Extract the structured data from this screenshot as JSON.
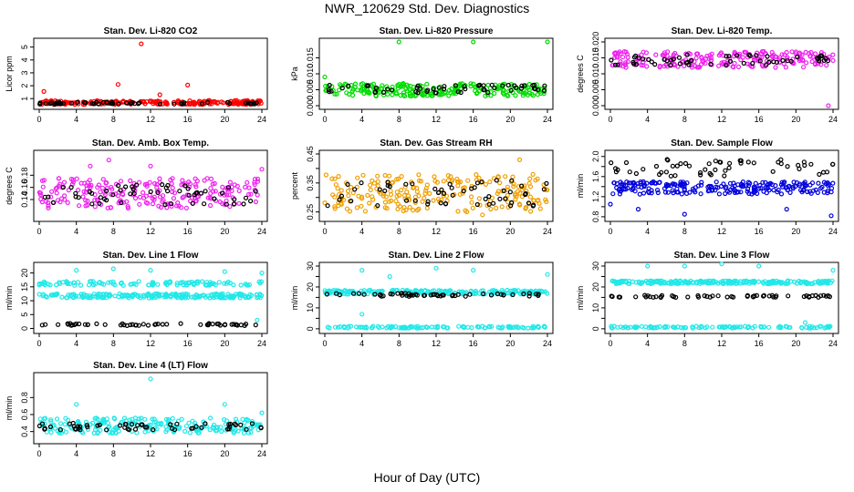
{
  "title": "NWR_120629  Std. Dev. Diagnostics",
  "x_caption": "Hour of Day (UTC)",
  "chart_data": [
    {
      "type": "scatter",
      "title": "Stan. Dev. Li-820 CO2",
      "ylabel": "Licor ppm",
      "xlim": [
        0,
        24
      ],
      "ylim": [
        0.45,
        5.4
      ],
      "x_ticks": [
        0,
        4,
        8,
        12,
        16,
        20,
        24
      ],
      "y_ticks": [
        1,
        2,
        3,
        4,
        5
      ],
      "y_tick_labels": [
        "1",
        "2",
        "3",
        "4",
        "5"
      ],
      "series": [
        {
          "color": "#ff0000",
          "band": [
            0.55,
            0.85
          ],
          "outliers": [
            [
              0.5,
              1.55
            ],
            [
              8.5,
              2.1
            ],
            [
              11,
              5.25
            ],
            [
              16,
              2.05
            ],
            [
              13,
              1.3
            ]
          ]
        },
        {
          "color": "#000000",
          "band": [
            0.55,
            0.72
          ],
          "outliers": []
        }
      ]
    },
    {
      "type": "scatter",
      "title": "Stan. Dev. Li-820 Pressure",
      "ylabel": "kPa",
      "xlim": [
        0,
        24
      ],
      "ylim": [
        0,
        0.02
      ],
      "x_ticks": [
        0,
        4,
        8,
        12,
        16,
        20,
        24
      ],
      "y_ticks": [
        0,
        0.005,
        0.01,
        0.015
      ],
      "y_tick_labels": [
        "0.000",
        "0.005",
        "0.010",
        "0.015"
      ],
      "series": [
        {
          "color": "#00dd00",
          "band": [
            0.003,
            0.007
          ],
          "outliers": [
            [
              8,
              0.02
            ],
            [
              16,
              0.02
            ],
            [
              24,
              0.02
            ],
            [
              0,
              0.009
            ]
          ]
        },
        {
          "color": "#000000",
          "band": [
            0.004,
            0.0065
          ],
          "outliers": []
        }
      ]
    },
    {
      "type": "scatter",
      "title": "Stan. Dev. Li-820 Temp.",
      "ylabel": "degrees C",
      "xlim": [
        0,
        24
      ],
      "ylim": [
        0,
        0.02
      ],
      "x_ticks": [
        0,
        4,
        8,
        12,
        16,
        20,
        24
      ],
      "y_ticks": [
        0,
        0.005,
        0.01,
        0.015,
        0.02
      ],
      "y_tick_labels": [
        "0.000",
        "0.005",
        "0.010",
        "0.015",
        "0.020"
      ],
      "series": [
        {
          "color": "#ee22ee",
          "band": [
            0.012,
            0.017
          ],
          "outliers": [
            [
              23.5,
              0.0
            ]
          ]
        },
        {
          "color": "#000000",
          "band": [
            0.0125,
            0.016
          ],
          "outliers": []
        }
      ]
    },
    {
      "type": "scatter",
      "title": "Stan. Dev. Amb. Box Temp.",
      "ylabel": "degrees C",
      "xlim": [
        0,
        24
      ],
      "ylim": [
        0.11,
        0.215
      ],
      "x_ticks": [
        0,
        4,
        8,
        12,
        16,
        20,
        24
      ],
      "y_ticks": [
        0.14,
        0.16,
        0.18
      ],
      "y_tick_labels": [
        "0.14",
        "0.16",
        "0.18"
      ],
      "series": [
        {
          "color": "#ee22ee",
          "band": [
            0.125,
            0.175
          ],
          "outliers": [
            [
              5.5,
              0.195
            ],
            [
              7.5,
              0.205
            ],
            [
              12,
              0.195
            ],
            [
              24,
              0.19
            ]
          ]
        },
        {
          "color": "#000000",
          "band": [
            0.13,
            0.165
          ],
          "outliers": []
        }
      ]
    },
    {
      "type": "scatter",
      "title": "Stan. Dev. Gas Stream RH",
      "ylabel": "percent",
      "xlim": [
        0,
        24
      ],
      "ylim": [
        0.23,
        0.45
      ],
      "x_ticks": [
        0,
        4,
        8,
        12,
        16,
        20,
        24
      ],
      "y_ticks": [
        0.25,
        0.3,
        0.35,
        0.4,
        0.45
      ],
      "y_tick_labels": [
        "0.25",
        "",
        "0.35",
        "",
        "0.45"
      ],
      "series": [
        {
          "color": "#f0a000",
          "band": [
            0.25,
            0.38
          ],
          "outliers": [
            [
              21,
              0.43
            ],
            [
              17,
              0.24
            ]
          ]
        },
        {
          "color": "#000000",
          "band": [
            0.27,
            0.36
          ],
          "outliers": []
        }
      ]
    },
    {
      "type": "scatter",
      "title": "Stan. Dev. Sample Flow",
      "ylabel": "ml/min",
      "xlim": [
        0,
        24
      ],
      "ylim": [
        0.78,
        2.05
      ],
      "x_ticks": [
        0,
        4,
        8,
        12,
        16,
        20,
        24
      ],
      "y_ticks": [
        0.8,
        1.0,
        1.2,
        1.4,
        1.6,
        1.8,
        2.0
      ],
      "y_tick_labels": [
        "0.8",
        "",
        "1.2",
        "",
        "1.6",
        "",
        "2.0"
      ],
      "series": [
        {
          "color": "#0000dd",
          "band": [
            1.25,
            1.5
          ],
          "outliers": [
            [
              0,
              1.05
            ],
            [
              3,
              0.95
            ],
            [
              8,
              0.85
            ],
            [
              23.8,
              0.82
            ],
            [
              19,
              0.95
            ]
          ]
        },
        {
          "color": "#000000",
          "band": [
            1.6,
            1.95
          ],
          "outliers": []
        }
      ]
    },
    {
      "type": "scatter",
      "title": "Stan. Dev. Line 1 Flow",
      "ylabel": "ml/min",
      "xlim": [
        0,
        24
      ],
      "ylim": [
        -0.5,
        22.5
      ],
      "x_ticks": [
        0,
        4,
        8,
        12,
        16,
        20,
        24
      ],
      "y_ticks": [
        0,
        5,
        10,
        15,
        20
      ],
      "y_tick_labels": [
        "0",
        "5",
        "10",
        "15",
        "20"
      ],
      "series": [
        {
          "color": "#22e8e8",
          "band": [
            11,
            12.5
          ],
          "band2": [
            15.5,
            17
          ],
          "outliers": [
            [
              4,
              21
            ],
            [
              8,
              21.5
            ],
            [
              12,
              21
            ],
            [
              20,
              20.5
            ],
            [
              24,
              20
            ],
            [
              23.5,
              3
            ]
          ]
        },
        {
          "color": "#000000",
          "band": [
            1,
            1.8
          ],
          "outliers": []
        }
      ]
    },
    {
      "type": "scatter",
      "title": "Stan. Dev. Line 2 Flow",
      "ylabel": "ml/min",
      "xlim": [
        0,
        24
      ],
      "ylim": [
        -0.5,
        30
      ],
      "x_ticks": [
        0,
        4,
        8,
        12,
        16,
        20,
        24
      ],
      "y_ticks": [
        0,
        5,
        10,
        15,
        20,
        25,
        30
      ],
      "y_tick_labels": [
        "0",
        "",
        "10",
        "",
        "20",
        "",
        "30"
      ],
      "series": [
        {
          "color": "#22e8e8",
          "band": [
            16.5,
            18.5
          ],
          "band2": [
            0.3,
            1.2
          ],
          "outliers": [
            [
              4,
              28
            ],
            [
              7,
              25
            ],
            [
              12,
              29
            ],
            [
              16,
              28
            ],
            [
              24,
              26
            ],
            [
              4,
              7
            ]
          ]
        },
        {
          "color": "#000000",
          "band": [
            15.5,
            17
          ],
          "outliers": []
        }
      ]
    },
    {
      "type": "scatter",
      "title": "Stan. Dev. Line 3 Flow",
      "ylabel": "ml/min",
      "xlim": [
        0,
        24
      ],
      "ylim": [
        -0.5,
        30
      ],
      "x_ticks": [
        0,
        4,
        8,
        12,
        16,
        20,
        24
      ],
      "y_ticks": [
        0,
        5,
        10,
        15,
        20,
        25,
        30
      ],
      "y_tick_labels": [
        "0",
        "",
        "10",
        "",
        "20",
        "",
        "30"
      ],
      "series": [
        {
          "color": "#22e8e8",
          "band": [
            21.5,
            23
          ],
          "band2": [
            0.3,
            1.2
          ],
          "outliers": [
            [
              4,
              30
            ],
            [
              8,
              30
            ],
            [
              12,
              31
            ],
            [
              16,
              30
            ],
            [
              24,
              28
            ],
            [
              21,
              3
            ]
          ]
        },
        {
          "color": "#000000",
          "band": [
            15,
            16
          ],
          "outliers": []
        }
      ]
    },
    {
      "type": "scatter",
      "title": "Stan. Dev. Line 4 (LT) Flow",
      "ylabel": "ml/min",
      "xlim": [
        0,
        24
      ],
      "ylim": [
        0.3,
        1.05
      ],
      "x_ticks": [
        0,
        4,
        8,
        12,
        16,
        20,
        24
      ],
      "y_ticks": [
        0.4,
        0.6,
        0.8
      ],
      "y_tick_labels": [
        "0.4",
        "0.6",
        "0.8"
      ],
      "series": [
        {
          "color": "#22e8e8",
          "band": [
            0.38,
            0.56
          ],
          "outliers": [
            [
              4,
              0.72
            ],
            [
              12,
              1.02
            ],
            [
              20,
              0.72
            ],
            [
              24,
              0.62
            ]
          ]
        },
        {
          "color": "#000000",
          "band": [
            0.42,
            0.5
          ],
          "outliers": []
        }
      ]
    }
  ]
}
